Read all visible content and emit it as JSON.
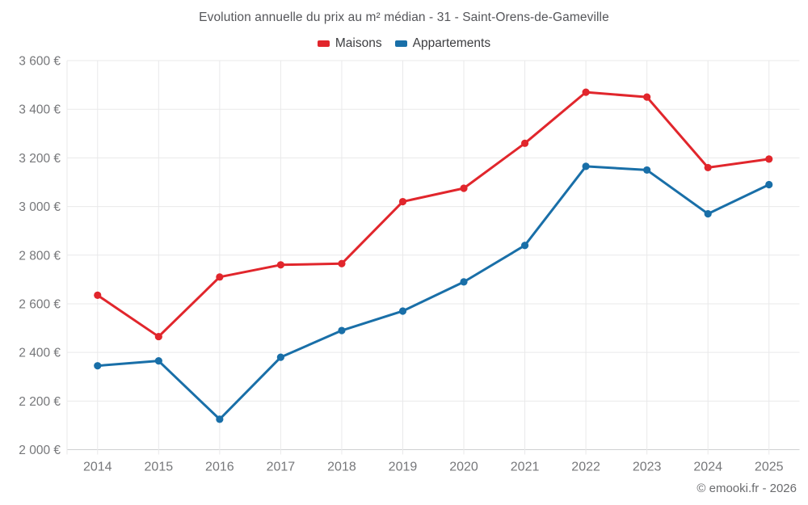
{
  "title": "Evolution annuelle du prix au m² médian - 31 - Saint-Orens-de-Gameville",
  "footer": "© emooki.fr - 2026",
  "colors": {
    "maisons": "#e1262c",
    "appartements": "#196fa8",
    "grid": "#e9e9ea",
    "axis_line": "#cfd0d1",
    "axis_text": "#76777a"
  },
  "chart_data": {
    "type": "line",
    "title": "Evolution annuelle du prix au m² médian - 31 - Saint-Orens-de-Gameville",
    "categories": [
      "2014",
      "2015",
      "2016",
      "2017",
      "2018",
      "2019",
      "2020",
      "2021",
      "2022",
      "2023",
      "2024",
      "2025"
    ],
    "series": [
      {
        "name": "Maisons",
        "color": "#e1262c",
        "values": [
          2635,
          2465,
          2710,
          2760,
          2765,
          3020,
          3075,
          3260,
          3470,
          3450,
          3160,
          3195
        ]
      },
      {
        "name": "Appartements",
        "color": "#196fa8",
        "values": [
          2345,
          2365,
          2125,
          2380,
          2490,
          2570,
          2690,
          2840,
          3165,
          3150,
          2970,
          3090
        ]
      }
    ],
    "ylim": [
      2000,
      3600
    ],
    "ytick_step": 200,
    "ytick_suffix": "€",
    "xlabel": "",
    "ylabel": "",
    "grid": true,
    "legend_position": "top"
  }
}
